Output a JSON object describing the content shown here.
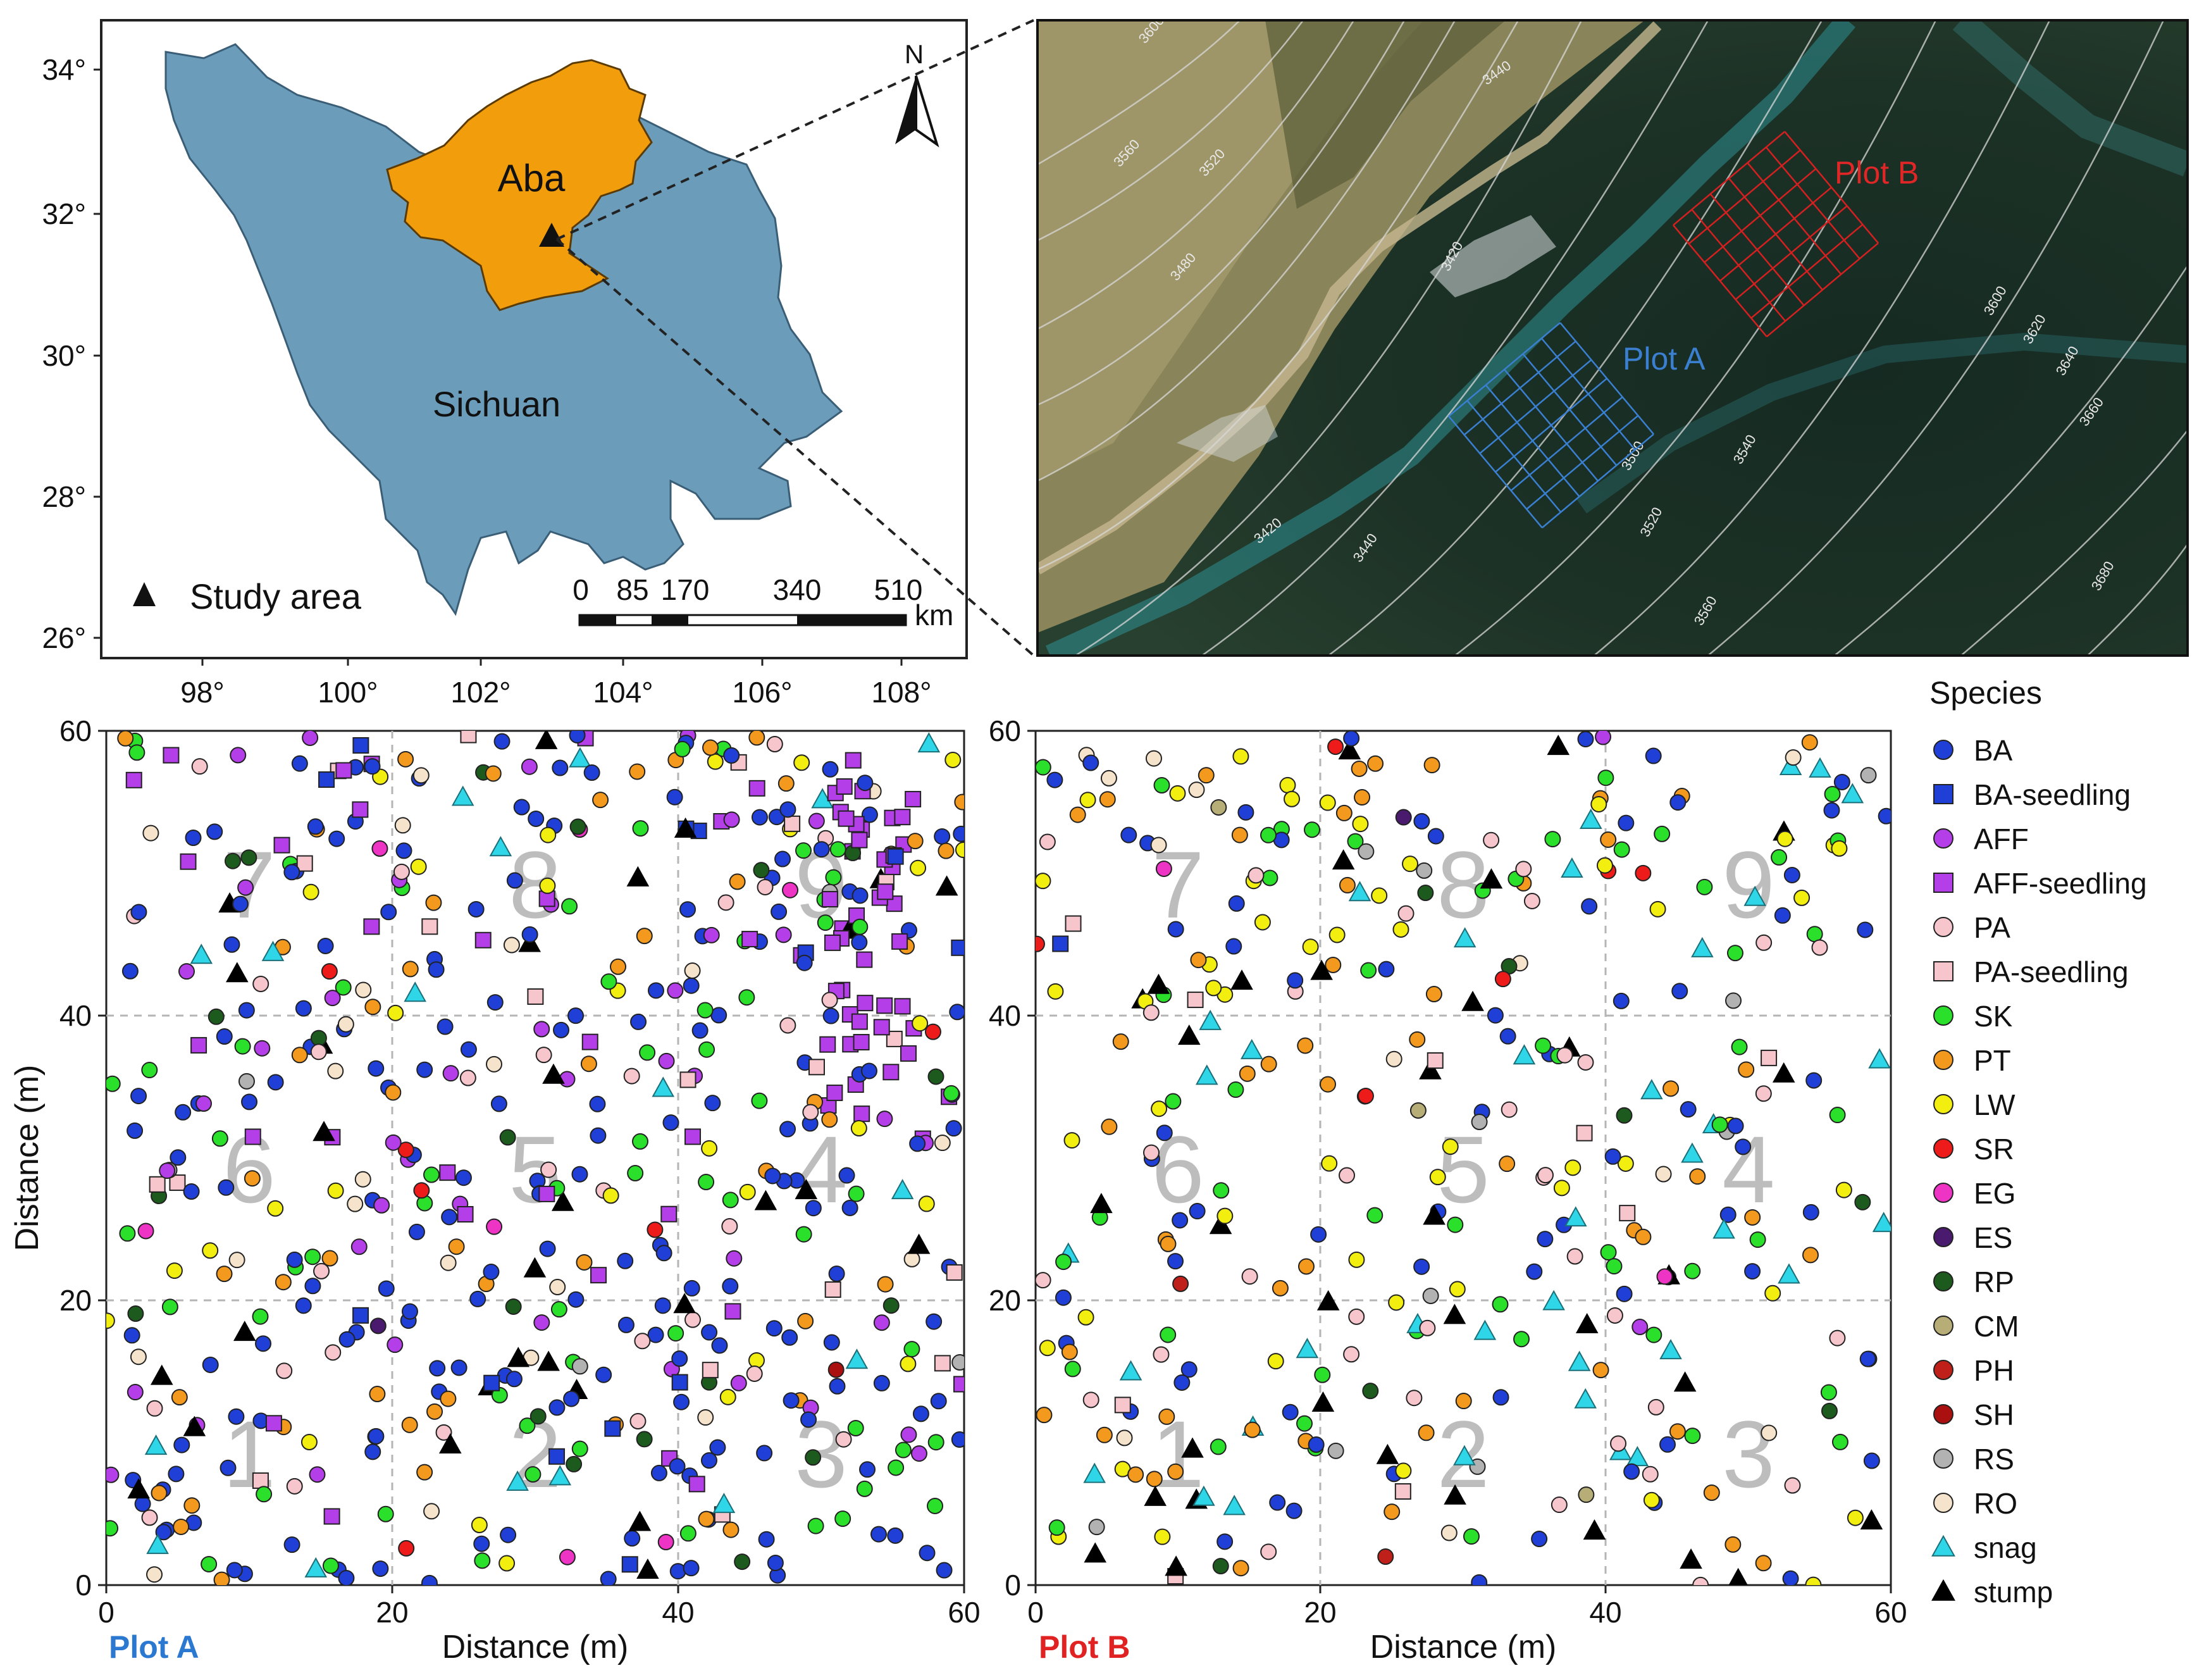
{
  "study_map": {
    "regions": {
      "aba": "Aba",
      "sichuan": "Sichuan"
    },
    "lat_ticks": [
      "34°",
      "32°",
      "30°",
      "28°",
      "26°"
    ],
    "lon_ticks": [
      "98°",
      "100°",
      "102°",
      "104°",
      "106°",
      "108°"
    ],
    "north_label": "N",
    "legend_label": "Study area",
    "scalebar_labels": [
      "0",
      "85",
      "170",
      "340",
      "510"
    ],
    "scalebar_unit": "km",
    "colors": {
      "sichuan": "#6b9dbb",
      "aba": "#f29d0c",
      "study_marker": "#111111"
    }
  },
  "aerial": {
    "plot_a_label": "Plot A",
    "plot_b_label": "Plot B",
    "contour_labels": [
      "3600",
      "3440",
      "3560",
      "3520",
      "3480",
      "3420",
      "3600",
      "3620",
      "3640",
      "3660",
      "3500",
      "3540",
      "3520",
      "3420",
      "3440",
      "3560",
      "3680"
    ],
    "colors": {
      "plot_a": "#3a7fd0",
      "plot_b": "#d42020"
    }
  },
  "plots": {
    "x_axis_label": "Distance (m)",
    "y_axis_label": "Distance (m)",
    "ticks": [
      "0",
      "20",
      "40",
      "60"
    ],
    "quadrat_numbers": [
      "1",
      "2",
      "3",
      "4",
      "5",
      "6",
      "7",
      "8",
      "9"
    ],
    "plot_a_title": "Plot A",
    "plot_b_title": "Plot B"
  },
  "legend": {
    "title": "Species",
    "items": [
      {
        "label": "BA",
        "shape": "circle",
        "color": "#1f3fd6"
      },
      {
        "label": "BA-seedling",
        "shape": "square",
        "color": "#1f3fd6"
      },
      {
        "label": "AFF",
        "shape": "circle",
        "color": "#b43ee8"
      },
      {
        "label": "AFF-seedling",
        "shape": "square",
        "color": "#b43ee8"
      },
      {
        "label": "PA",
        "shape": "circle",
        "color": "#f6c6cc"
      },
      {
        "label": "PA-seedling",
        "shape": "square",
        "color": "#f6c6cc"
      },
      {
        "label": "SK",
        "shape": "circle",
        "color": "#2be02b"
      },
      {
        "label": "PT",
        "shape": "circle",
        "color": "#f39a1e"
      },
      {
        "label": "LW",
        "shape": "circle",
        "color": "#f2ee10"
      },
      {
        "label": "SR",
        "shape": "circle",
        "color": "#ee1b1b"
      },
      {
        "label": "EG",
        "shape": "circle",
        "color": "#ee34c4"
      },
      {
        "label": "ES",
        "shape": "circle",
        "color": "#4a1a6e"
      },
      {
        "label": "RP",
        "shape": "circle",
        "color": "#1d5a1d"
      },
      {
        "label": "CM",
        "shape": "circle",
        "color": "#b7ad77"
      },
      {
        "label": "PH",
        "shape": "circle",
        "color": "#c0201a"
      },
      {
        "label": "SH",
        "shape": "circle",
        "color": "#aa1010"
      },
      {
        "label": "RS",
        "shape": "circle",
        "color": "#b2b2b2"
      },
      {
        "label": "RO",
        "shape": "circle",
        "color": "#f6e3cb"
      },
      {
        "label": "snag",
        "shape": "triangle",
        "color": "#2fd6e8"
      },
      {
        "label": "stump",
        "shape": "triangle",
        "color": "#000000"
      }
    ]
  }
}
